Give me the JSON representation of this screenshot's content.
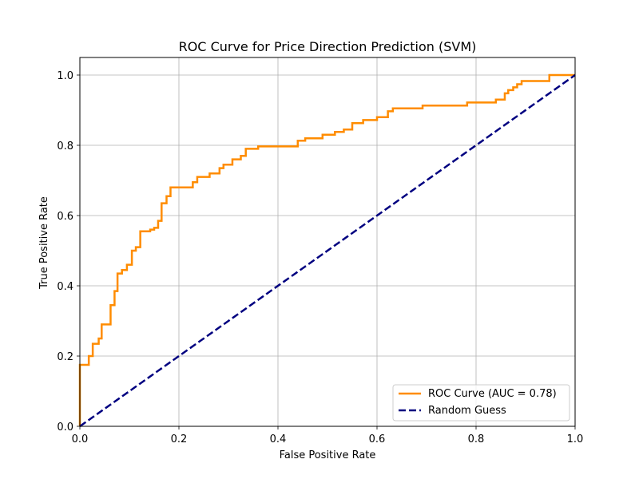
{
  "chart_data": {
    "type": "line",
    "title": "ROC Curve for Price Direction Prediction (SVM)",
    "xlabel": "False Positive Rate",
    "ylabel": "True Positive Rate",
    "xlim": [
      0.0,
      1.0
    ],
    "ylim": [
      0.0,
      1.05
    ],
    "xticks": [
      "0.0",
      "0.2",
      "0.4",
      "0.6",
      "0.8",
      "1.0"
    ],
    "yticks": [
      "0.0",
      "0.2",
      "0.4",
      "0.6",
      "0.8",
      "1.0"
    ],
    "xtick_values": [
      0.0,
      0.2,
      0.4,
      0.6,
      0.8,
      1.0
    ],
    "ytick_values": [
      0.0,
      0.2,
      0.4,
      0.6,
      0.8,
      1.0
    ],
    "grid": true,
    "legend_position": "lower-right",
    "series": [
      {
        "name": "ROC Curve (AUC = 0.78)",
        "color": "#ff8c00",
        "style": "solid",
        "points": [
          [
            0.0,
            0.0
          ],
          [
            0.0,
            0.175
          ],
          [
            0.018,
            0.175
          ],
          [
            0.018,
            0.2
          ],
          [
            0.026,
            0.2
          ],
          [
            0.026,
            0.235
          ],
          [
            0.038,
            0.235
          ],
          [
            0.038,
            0.25
          ],
          [
            0.044,
            0.25
          ],
          [
            0.044,
            0.29
          ],
          [
            0.062,
            0.29
          ],
          [
            0.062,
            0.345
          ],
          [
            0.07,
            0.345
          ],
          [
            0.07,
            0.385
          ],
          [
            0.076,
            0.385
          ],
          [
            0.076,
            0.435
          ],
          [
            0.085,
            0.435
          ],
          [
            0.085,
            0.445
          ],
          [
            0.095,
            0.445
          ],
          [
            0.095,
            0.46
          ],
          [
            0.105,
            0.46
          ],
          [
            0.105,
            0.5
          ],
          [
            0.113,
            0.5
          ],
          [
            0.113,
            0.51
          ],
          [
            0.122,
            0.51
          ],
          [
            0.122,
            0.555
          ],
          [
            0.142,
            0.555
          ],
          [
            0.142,
            0.56
          ],
          [
            0.15,
            0.56
          ],
          [
            0.15,
            0.565
          ],
          [
            0.158,
            0.565
          ],
          [
            0.158,
            0.585
          ],
          [
            0.165,
            0.585
          ],
          [
            0.165,
            0.635
          ],
          [
            0.175,
            0.635
          ],
          [
            0.175,
            0.655
          ],
          [
            0.183,
            0.655
          ],
          [
            0.183,
            0.68
          ],
          [
            0.228,
            0.68
          ],
          [
            0.228,
            0.695
          ],
          [
            0.237,
            0.695
          ],
          [
            0.237,
            0.71
          ],
          [
            0.262,
            0.71
          ],
          [
            0.262,
            0.72
          ],
          [
            0.282,
            0.72
          ],
          [
            0.282,
            0.735
          ],
          [
            0.29,
            0.735
          ],
          [
            0.29,
            0.745
          ],
          [
            0.308,
            0.745
          ],
          [
            0.308,
            0.76
          ],
          [
            0.325,
            0.76
          ],
          [
            0.325,
            0.77
          ],
          [
            0.335,
            0.77
          ],
          [
            0.335,
            0.79
          ],
          [
            0.36,
            0.79
          ],
          [
            0.36,
            0.797
          ],
          [
            0.44,
            0.797
          ],
          [
            0.44,
            0.813
          ],
          [
            0.455,
            0.813
          ],
          [
            0.455,
            0.82
          ],
          [
            0.49,
            0.82
          ],
          [
            0.49,
            0.83
          ],
          [
            0.515,
            0.83
          ],
          [
            0.515,
            0.838
          ],
          [
            0.533,
            0.838
          ],
          [
            0.533,
            0.845
          ],
          [
            0.55,
            0.845
          ],
          [
            0.55,
            0.863
          ],
          [
            0.572,
            0.863
          ],
          [
            0.572,
            0.872
          ],
          [
            0.6,
            0.872
          ],
          [
            0.6,
            0.88
          ],
          [
            0.622,
            0.88
          ],
          [
            0.622,
            0.897
          ],
          [
            0.632,
            0.897
          ],
          [
            0.632,
            0.905
          ],
          [
            0.692,
            0.905
          ],
          [
            0.692,
            0.913
          ],
          [
            0.782,
            0.913
          ],
          [
            0.782,
            0.922
          ],
          [
            0.84,
            0.922
          ],
          [
            0.84,
            0.93
          ],
          [
            0.858,
            0.93
          ],
          [
            0.858,
            0.948
          ],
          [
            0.865,
            0.948
          ],
          [
            0.865,
            0.957
          ],
          [
            0.875,
            0.957
          ],
          [
            0.875,
            0.965
          ],
          [
            0.883,
            0.965
          ],
          [
            0.883,
            0.974
          ],
          [
            0.892,
            0.974
          ],
          [
            0.892,
            0.983
          ],
          [
            0.948,
            0.983
          ],
          [
            0.948,
            1.0
          ],
          [
            1.0,
            1.0
          ]
        ]
      },
      {
        "name": "Random Guess",
        "color": "#000080",
        "style": "dashed",
        "points": [
          [
            0.0,
            0.0
          ],
          [
            1.0,
            1.0
          ]
        ]
      }
    ]
  }
}
